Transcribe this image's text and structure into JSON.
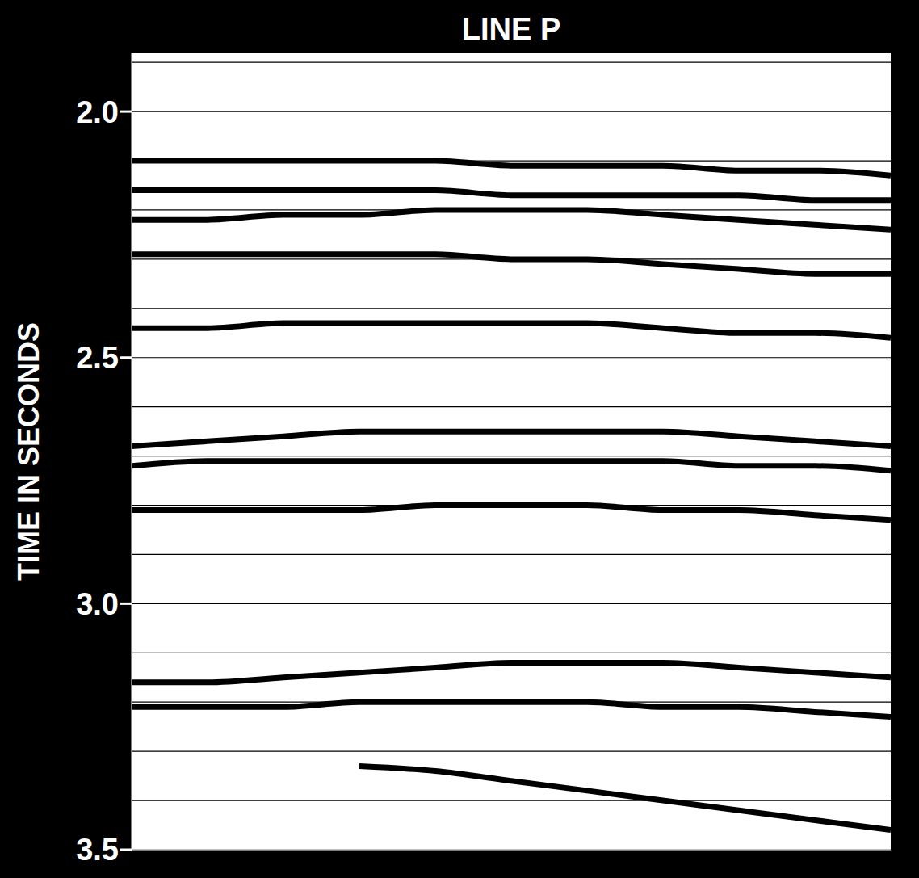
{
  "chart_data": {
    "type": "line",
    "title": "LINE P",
    "y_label": "TIME IN SECONDS",
    "x": [
      0,
      10,
      20,
      30,
      40,
      50,
      60,
      70,
      80,
      90,
      100
    ],
    "xlim": [
      0,
      100
    ],
    "ylim": [
      1.88,
      3.5
    ],
    "yticks": [
      {
        "value": 2,
        "label": "2.0"
      },
      2.5,
      {
        "value": 3,
        "label": "3.0"
      },
      3.5
    ],
    "timing_lines": [
      1.9,
      2.0,
      2.1,
      2.2,
      2.3,
      2.4,
      2.5,
      2.6,
      2.7,
      2.8,
      2.9,
      3.0,
      3.1,
      3.2,
      3.3,
      3.4,
      3.5
    ],
    "grid": true,
    "tick_labels": "y",
    "series": [
      {
        "color": "#000000",
        "values": [
          2.1,
          2.1,
          2.1,
          2.1,
          2.1,
          2.11,
          2.11,
          2.11,
          2.12,
          2.12,
          2.13
        ]
      },
      {
        "color": "#000000",
        "values": [
          2.16,
          2.16,
          2.16,
          2.16,
          2.16,
          2.17,
          2.17,
          2.17,
          2.17,
          2.18,
          2.18
        ]
      },
      {
        "color": "#000000",
        "values": [
          2.22,
          2.22,
          2.21,
          2.21,
          2.2,
          2.2,
          2.2,
          2.21,
          2.22,
          2.23,
          2.24
        ]
      },
      {
        "color": "#000000",
        "values": [
          2.29,
          2.29,
          2.29,
          2.29,
          2.29,
          2.3,
          2.3,
          2.31,
          2.32,
          2.33,
          2.33
        ]
      },
      {
        "color": "#000000",
        "values": [
          2.44,
          2.44,
          2.43,
          2.43,
          2.43,
          2.43,
          2.43,
          2.44,
          2.45,
          2.45,
          2.46
        ]
      },
      {
        "color": "#000000",
        "values": [
          2.68,
          2.67,
          2.66,
          2.65,
          2.65,
          2.65,
          2.65,
          2.65,
          2.66,
          2.67,
          2.68
        ]
      },
      {
        "color": "#000000",
        "values": [
          2.72,
          2.71,
          2.71,
          2.71,
          2.71,
          2.71,
          2.71,
          2.71,
          2.72,
          2.72,
          2.73
        ]
      },
      {
        "color": "#000000",
        "values": [
          2.81,
          2.81,
          2.81,
          2.81,
          2.8,
          2.8,
          2.8,
          2.81,
          2.81,
          2.82,
          2.83
        ]
      },
      {
        "color": "#000000",
        "values": [
          3.16,
          3.16,
          3.15,
          3.14,
          3.13,
          3.12,
          3.12,
          3.12,
          3.13,
          3.14,
          3.15
        ]
      },
      {
        "color": "#000000",
        "values": [
          3.21,
          3.21,
          3.21,
          3.2,
          3.2,
          3.2,
          3.2,
          3.21,
          3.21,
          3.22,
          3.23
        ]
      },
      {
        "color": "#000000",
        "values": [
          null,
          null,
          null,
          3.33,
          3.34,
          3.36,
          3.38,
          3.4,
          3.42,
          3.44,
          3.46
        ]
      }
    ]
  }
}
